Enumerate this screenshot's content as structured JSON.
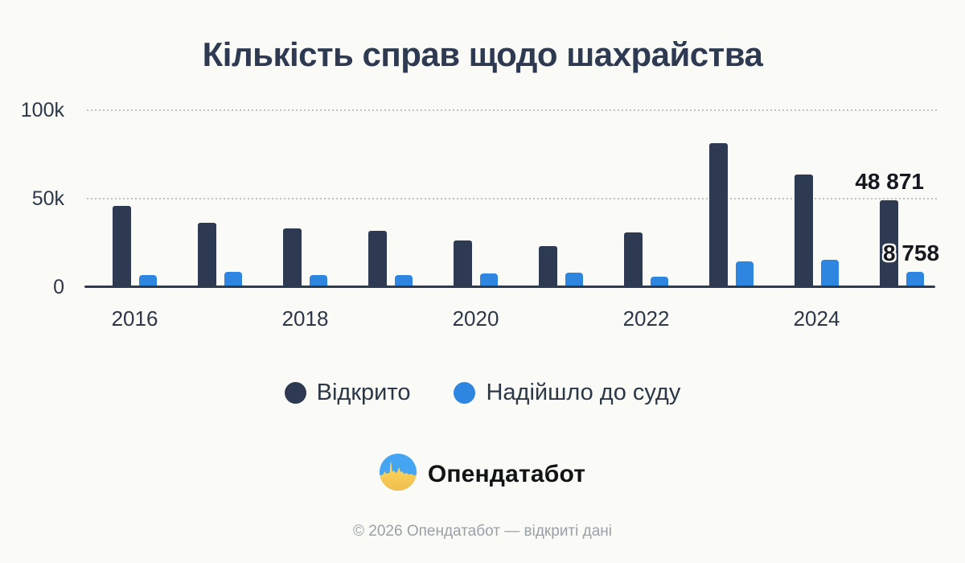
{
  "title": "Кількість справ щодо шахрайства",
  "colors": {
    "background": "#fafbf7",
    "opened": "#2e3a51",
    "to_court": "#2e86e0"
  },
  "chart_data": {
    "type": "bar",
    "title": "Кількість справ щодо шахрайства",
    "categories": [
      "2016",
      "2017",
      "2018",
      "2019",
      "2020",
      "2021",
      "2022",
      "2023",
      "2024",
      "2025"
    ],
    "series": [
      {
        "name": "Відкрито",
        "color": "#2e3a51",
        "values": [
          46000,
          36500,
          33000,
          32000,
          26500,
          23000,
          31000,
          81500,
          63500,
          48871
        ]
      },
      {
        "name": "Надійшло до суду",
        "color": "#2e86e0",
        "values": [
          6600,
          8800,
          6700,
          6600,
          7700,
          8000,
          6000,
          14500,
          15500,
          8758
        ]
      }
    ],
    "ylim": [
      0,
      100000
    ],
    "yticks": [
      {
        "value": 0,
        "label": "0"
      },
      {
        "value": 50000,
        "label": "50k"
      },
      {
        "value": 100000,
        "label": "100k"
      }
    ],
    "xticks": [
      {
        "index": 0,
        "label": "2016"
      },
      {
        "index": 2,
        "label": "2018"
      },
      {
        "index": 4,
        "label": "2020"
      },
      {
        "index": 6,
        "label": "2022"
      },
      {
        "index": 8,
        "label": "2024"
      }
    ],
    "grid": "horizontal-dotted",
    "legend_position": "bottom",
    "annotations": [
      {
        "category": "2025",
        "series": "Відкрито",
        "text": "48 871"
      },
      {
        "category": "2025",
        "series": "Надійшло до суду",
        "text": "8 758"
      }
    ]
  },
  "legend": {
    "items": [
      {
        "label": "Відкрито",
        "color": "#2e3a51"
      },
      {
        "label": "Надійшло до суду",
        "color": "#2e86e0"
      }
    ]
  },
  "footer": {
    "brand": "Опендатабот",
    "copyright": "© 2026 Опендатабот — відкриті дані"
  }
}
